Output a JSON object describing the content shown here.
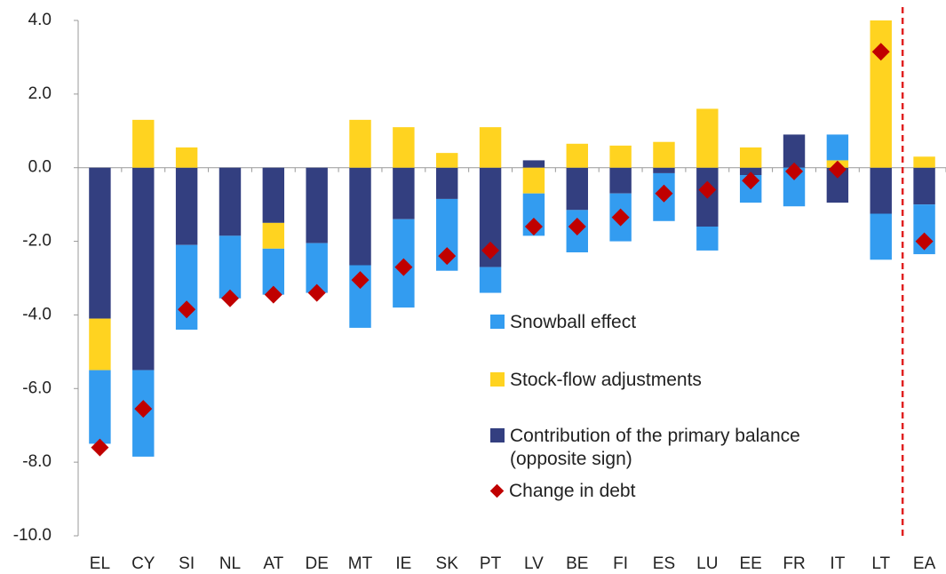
{
  "chart_data": {
    "type": "bar",
    "stacked": true,
    "categories": [
      "EL",
      "CY",
      "SI",
      "NL",
      "AT",
      "DE",
      "MT",
      "IE",
      "SK",
      "PT",
      "LV",
      "BE",
      "FI",
      "ES",
      "LU",
      "EE",
      "FR",
      "IT",
      "LT",
      "EA"
    ],
    "series": [
      {
        "name": "Snowball effect",
        "color": "#339cf0",
        "values": [
          -2.0,
          -2.35,
          -2.3,
          -1.7,
          -1.25,
          -1.35,
          -1.7,
          -2.4,
          -1.95,
          -0.7,
          -1.15,
          -1.15,
          -1.3,
          -1.3,
          -0.65,
          -0.75,
          -1.05,
          0.7,
          -1.25,
          -1.35
        ]
      },
      {
        "name": "Stock-flow adjustments",
        "color": "#ffd320",
        "values": [
          -1.4,
          1.3,
          0.55,
          0,
          -0.7,
          0,
          1.3,
          1.1,
          0.4,
          1.1,
          -0.7,
          0.65,
          0.6,
          0.7,
          1.6,
          0.55,
          0,
          0.2,
          4.0,
          0.3
        ]
      },
      {
        "name": "Contribution of the primary balance (opposite sign)",
        "color": "#333f80",
        "values": [
          -4.1,
          -5.5,
          -2.1,
          -1.85,
          -1.5,
          -2.05,
          -2.65,
          -1.4,
          -0.85,
          -2.7,
          0.2,
          -1.15,
          -0.7,
          -0.15,
          -1.6,
          -0.2,
          0.9,
          -0.95,
          -1.25,
          -1.0
        ]
      },
      {
        "name": "Change in debt",
        "type": "diamond",
        "color": "#c00000",
        "values": [
          -7.6,
          -6.55,
          -3.85,
          -3.55,
          -3.45,
          -3.4,
          -3.05,
          -2.7,
          -2.4,
          -2.25,
          -1.6,
          -1.6,
          -1.35,
          -0.7,
          -0.6,
          -0.35,
          -0.1,
          -0.05,
          3.15,
          -2.0
        ]
      }
    ],
    "ylim": [
      -10,
      4
    ],
    "yticks": [
      {
        "value": -10,
        "label": "-10.0"
      },
      {
        "value": -8,
        "label": "-8.0"
      },
      {
        "value": -6,
        "label": "-6.0"
      },
      {
        "value": -4,
        "label": "-4.0"
      },
      {
        "value": -2,
        "label": "-2.0"
      },
      {
        "value": 0,
        "label": "0.0"
      },
      {
        "value": 2,
        "label": "2.0"
      },
      {
        "value": 4,
        "label": "4.0"
      }
    ],
    "grid": false
  }
}
